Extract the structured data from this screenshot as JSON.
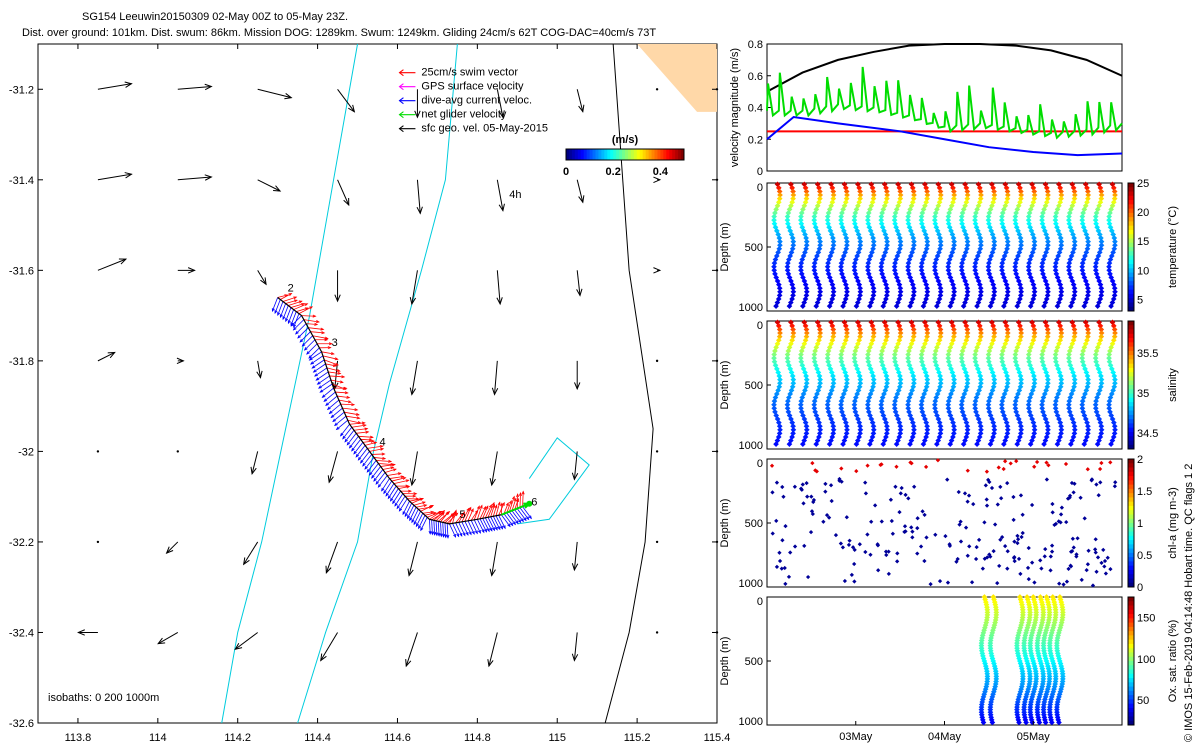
{
  "title": {
    "line1": "SG154 Leeuwin20150309 02-May 00Z to 05-May 23Z.",
    "line2": "Dist. over ground: 101km. Dist. swum: 86km. Mission DOG: 1289km. Swum: 1249km. Gliding 24cm/s 62T COG-DAC=40cm/s 73T"
  },
  "side_note": "© IMOS 15-Feb-2019 04:14:48 Hobart time. QC flags 1  2",
  "colors": {
    "swim": "#ff0000",
    "gps": "#ff00ff",
    "dac": "#0000ff",
    "net": "#00dd00",
    "sfc": "#000000",
    "isobath": "#00ccdd",
    "coast": "#000000"
  },
  "chart_data": [
    {
      "type": "map",
      "name": "glider track map",
      "xlim": [
        113.7,
        115.4
      ],
      "ylim": [
        -32.6,
        -31.1
      ],
      "xticks": [
        113.8,
        114,
        114.2,
        114.4,
        114.6,
        114.8,
        115,
        115.2,
        115.4
      ],
      "xtick_labels": [
        "113.8",
        "114",
        "114.2",
        "114.4",
        "114.6",
        "114.8",
        "115",
        "115.2",
        "115.4"
      ],
      "yticks": [
        -31.2,
        -31.4,
        -31.6,
        -31.8,
        -32,
        -32.2,
        -32.4,
        -32.6
      ],
      "ytick_labels": [
        "-31.2",
        "-31.4",
        "-31.6",
        "-31.8",
        "-32",
        "-32.2",
        "-32.4",
        "-32.6"
      ],
      "legend": [
        {
          "label": "25cm/s swim vector",
          "color": "#ff0000"
        },
        {
          "label": "GPS surface velocity",
          "color": "#ff00ff"
        },
        {
          "label": "dive-avg current veloc.",
          "color": "#0000ff"
        },
        {
          "label": "net glider velocity",
          "color": "#00dd00"
        },
        {
          "label": "sfc geo. vel. 05-May-2015",
          "color": "#000000"
        }
      ],
      "colorbar": {
        "label": "(m/s)",
        "ticks": [
          0,
          0.2,
          0.4
        ],
        "tick_labels": [
          "0",
          "0.2",
          "0.4"
        ],
        "range": [
          0,
          0.5
        ]
      },
      "isobath_label": "isobaths: 0   200  1000m",
      "track_labels": [
        "2",
        "3",
        "4",
        "5",
        "6"
      ],
      "time_marker": "4h",
      "track": [
        [
          114.3,
          -31.66
        ],
        [
          114.36,
          -31.7
        ],
        [
          114.41,
          -31.78
        ],
        [
          114.44,
          -31.86
        ],
        [
          114.48,
          -31.94
        ],
        [
          114.53,
          -32.0
        ],
        [
          114.58,
          -32.06
        ],
        [
          114.63,
          -32.11
        ],
        [
          114.68,
          -32.15
        ],
        [
          114.73,
          -32.16
        ],
        [
          114.8,
          -32.15
        ],
        [
          114.86,
          -32.14
        ],
        [
          114.92,
          -32.12
        ]
      ],
      "current_field": {
        "lons": [
          113.85,
          114.05,
          114.25,
          114.45,
          114.65,
          114.85,
          115.05,
          115.25,
          115.4
        ],
        "lats": [
          -31.2,
          -31.4,
          -31.6,
          -31.8,
          -32.0,
          -32.2,
          -32.4
        ],
        "u": [
          [
            0.12,
            0.12,
            0.12,
            0.06,
            0.0,
            0.02,
            0.02,
            0.0,
            0.0
          ],
          [
            0.12,
            0.12,
            0.08,
            0.04,
            0.01,
            0.02,
            0.02,
            0.01,
            0.0
          ],
          [
            0.1,
            0.06,
            0.03,
            0.0,
            -0.02,
            0.01,
            0.01,
            0.01,
            0.0
          ],
          [
            0.06,
            0.02,
            0.01,
            -0.01,
            -0.02,
            -0.01,
            0.0,
            0.0,
            0.0
          ],
          [
            0.0,
            0.0,
            -0.02,
            -0.03,
            -0.02,
            -0.02,
            -0.01,
            0.0,
            0.0
          ],
          [
            0.0,
            -0.04,
            -0.05,
            -0.04,
            -0.03,
            -0.02,
            -0.01,
            0.0,
            0.0
          ],
          [
            -0.07,
            -0.07,
            -0.08,
            -0.06,
            -0.04,
            -0.03,
            -0.01,
            0.0,
            0.0
          ]
        ],
        "v": [
          [
            0.02,
            0.01,
            -0.03,
            -0.08,
            -0.1,
            -0.1,
            -0.08,
            0.0,
            0.0
          ],
          [
            0.02,
            0.01,
            -0.04,
            -0.09,
            -0.12,
            -0.11,
            -0.08,
            0.0,
            0.0
          ],
          [
            0.04,
            0.0,
            -0.05,
            -0.11,
            -0.12,
            -0.12,
            -0.09,
            0.0,
            0.0
          ],
          [
            0.03,
            0.0,
            -0.06,
            -0.1,
            -0.12,
            -0.12,
            -0.1,
            0.0,
            0.0
          ],
          [
            0.0,
            0.0,
            -0.08,
            -0.11,
            -0.12,
            -0.12,
            -0.1,
            0.0,
            0.0
          ],
          [
            0.0,
            -0.04,
            -0.08,
            -0.11,
            -0.12,
            -0.12,
            -0.1,
            0.0,
            0.0
          ],
          [
            0.0,
            -0.04,
            -0.06,
            -0.1,
            -0.12,
            -0.12,
            -0.1,
            0.0,
            0.0
          ]
        ]
      },
      "coast": [
        [
          115.14,
          -31.1
        ],
        [
          115.18,
          -31.6
        ],
        [
          115.24,
          -31.95
        ],
        [
          115.22,
          -32.2
        ],
        [
          115.18,
          -32.4
        ],
        [
          115.12,
          -32.6
        ]
      ],
      "isobath_200": [
        [
          114.75,
          -31.1
        ],
        [
          114.72,
          -31.4
        ],
        [
          114.66,
          -31.6
        ],
        [
          114.58,
          -31.85
        ],
        [
          114.54,
          -32.0
        ],
        [
          114.5,
          -32.2
        ],
        [
          114.42,
          -32.4
        ],
        [
          114.35,
          -32.6
        ]
      ],
      "isobath_1000": [
        [
          114.5,
          -31.1
        ],
        [
          114.44,
          -31.4
        ],
        [
          114.38,
          -31.7
        ],
        [
          114.32,
          -31.95
        ],
        [
          114.26,
          -32.2
        ],
        [
          114.2,
          -32.4
        ],
        [
          114.16,
          -32.6
        ]
      ]
    },
    {
      "type": "line",
      "name": "velocity magnitude",
      "ylabel": "velocity magnitude (m/s)",
      "ylim": [
        0,
        0.8
      ],
      "yticks": [
        0,
        0.2,
        0.4,
        0.6,
        0.8
      ],
      "ytick_labels": [
        "0",
        "0.2",
        "0.4",
        "0.6",
        "0.8"
      ],
      "x_days": [
        0,
        4
      ],
      "series": [
        {
          "name": "sfc speed",
          "color": "#000000",
          "x": [
            0,
            0.4,
            0.8,
            1.2,
            1.6,
            2.0,
            2.4,
            2.8,
            3.2,
            3.6,
            4.0
          ],
          "y": [
            0.5,
            0.62,
            0.7,
            0.75,
            0.79,
            0.8,
            0.8,
            0.79,
            0.76,
            0.7,
            0.6
          ]
        },
        {
          "name": "swim",
          "color": "#ff0000",
          "x": [
            0,
            4
          ],
          "y": [
            0.25,
            0.25
          ]
        },
        {
          "name": "dive-avg current",
          "color": "#0000ff",
          "x": [
            0,
            0.3,
            0.8,
            1.5,
            2.0,
            2.5,
            3.0,
            3.5,
            4.0
          ],
          "y": [
            0.2,
            0.34,
            0.3,
            0.25,
            0.2,
            0.15,
            0.12,
            0.1,
            0.11
          ]
        },
        {
          "name": "net glider",
          "color": "#00dd00",
          "x": [
            0,
            0.4,
            0.8,
            1.2,
            1.6,
            2.0,
            2.4,
            2.8,
            3.2,
            3.6,
            4.0
          ],
          "y": [
            0.38,
            0.38,
            0.42,
            0.4,
            0.35,
            0.28,
            0.3,
            0.27,
            0.24,
            0.26,
            0.3
          ]
        }
      ]
    },
    {
      "type": "scatter",
      "name": "temperature section",
      "ylabel": "Depth (m)",
      "clabel": "temperature (°C)",
      "ylim": [
        0,
        1000
      ],
      "yticks": [
        0,
        500,
        1000
      ],
      "ytick_labels": [
        "0",
        "500",
        "1000"
      ],
      "cticks": [
        5,
        10,
        15,
        20,
        25
      ],
      "ctick_labels": [
        "5",
        "10",
        "15",
        "20",
        "25"
      ],
      "crange": [
        3,
        25
      ],
      "n_dives": 26,
      "surface_value": 24,
      "deep_value": 4
    },
    {
      "type": "scatter",
      "name": "salinity section",
      "ylabel": "Depth (m)",
      "clabel": "salinity",
      "ylim": [
        0,
        1000
      ],
      "yticks": [
        0,
        500,
        1000
      ],
      "ytick_labels": [
        "0",
        "500",
        "1000"
      ],
      "cticks": [
        34.5,
        35,
        35.5
      ],
      "ctick_labels": [
        "34.5",
        "35",
        "35.5"
      ],
      "crange": [
        34.3,
        35.9
      ],
      "n_dives": 26,
      "surface_value": 35.8,
      "deep_value": 34.4
    },
    {
      "type": "scatter",
      "name": "chlorophyll section",
      "ylabel": "Depth (m)",
      "clabel": "chl-a (mg m-3)",
      "ylim": [
        0,
        1000
      ],
      "yticks": [
        0,
        500,
        1000
      ],
      "ytick_labels": [
        "0",
        "500",
        "1000"
      ],
      "cticks": [
        0,
        0.5,
        1,
        1.5,
        2
      ],
      "ctick_labels": [
        "0",
        "0.5",
        "1",
        "1.5",
        "2"
      ],
      "crange": [
        0,
        2
      ],
      "n_dives": 26
    },
    {
      "type": "scatter",
      "name": "oxygen saturation section",
      "ylabel": "Depth (m)",
      "clabel": "Ox. sat. ratio (%)",
      "ylim": [
        0,
        1000
      ],
      "yticks": [
        0,
        500,
        1000
      ],
      "ytick_labels": [
        "0",
        "500",
        "1000"
      ],
      "cticks": [
        50,
        100,
        150
      ],
      "ctick_labels": [
        "50",
        "100",
        "150"
      ],
      "crange": [
        20,
        175
      ],
      "xtick_labels": [
        "03May",
        "04May",
        "05May"
      ],
      "xtick_days": [
        1,
        2,
        3
      ]
    }
  ]
}
